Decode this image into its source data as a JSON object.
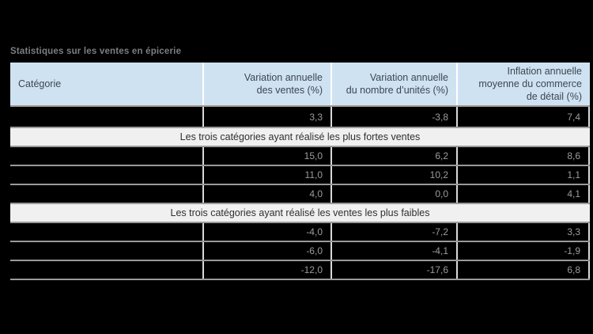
{
  "title": "Statistiques sur les ventes en épicerie",
  "colors": {
    "page_background": "#000000",
    "header_background": "#cfe2f2",
    "header_text": "#3d4651",
    "row_background": "#000000",
    "row_value_text": "#9c9c9c",
    "section_band_background": "#f0f0f0",
    "section_band_text": "#2f2f2f",
    "grid_line": "#9a9a9a",
    "column_separator": "#d9d9d9"
  },
  "table": {
    "column_headers": [
      {
        "label": "Catégorie"
      },
      {
        "label": "Variation annuelle\ndes ventes (%)"
      },
      {
        "label": "Variation annuelle\ndu nombre d’unités (%)"
      },
      {
        "label": "Inflation annuelle\nmoyenne du commerce\nde détail (%)"
      }
    ],
    "summary_row": {
      "category": "",
      "values": [
        "3,3",
        "-3,8",
        "7,4"
      ]
    },
    "sections": [
      {
        "label": "Les trois catégories ayant réalisé les plus fortes ventes",
        "rows": [
          {
            "category": "",
            "values": [
              "15,0",
              "6,2",
              "8,6"
            ]
          },
          {
            "category": "",
            "values": [
              "11,0",
              "10,2",
              "1,1"
            ]
          },
          {
            "category": "",
            "values": [
              "4,0",
              "0,0",
              "4,1"
            ]
          }
        ]
      },
      {
        "label": "Les trois catégories ayant réalisé les ventes les plus faibles",
        "rows": [
          {
            "category": "",
            "values": [
              "-4,0",
              "-7,2",
              "3,3"
            ]
          },
          {
            "category": "",
            "values": [
              "-6,0",
              "-4,1",
              "-1,9"
            ]
          },
          {
            "category": "",
            "values": [
              "-12,0",
              "-17,6",
              "6,8"
            ]
          }
        ]
      }
    ]
  },
  "chart_data": {
    "type": "table",
    "title": "Statistiques sur les ventes en épicerie",
    "columns": [
      "Catégorie",
      "Variation annuelle des ventes (%)",
      "Variation annuelle du nombre d’unités (%)",
      "Inflation annuelle moyenne du commerce de détail (%)"
    ],
    "rows": [
      {
        "categorie": "",
        "variation_ventes_pct": 3.3,
        "variation_unites_pct": -3.8,
        "inflation_pct": 7.4
      },
      {
        "section": "Les trois catégories ayant réalisé les plus fortes ventes"
      },
      {
        "categorie": "",
        "variation_ventes_pct": 15.0,
        "variation_unites_pct": 6.2,
        "inflation_pct": 8.6
      },
      {
        "categorie": "",
        "variation_ventes_pct": 11.0,
        "variation_unites_pct": 10.2,
        "inflation_pct": 1.1
      },
      {
        "categorie": "",
        "variation_ventes_pct": 4.0,
        "variation_unites_pct": 0.0,
        "inflation_pct": 4.1
      },
      {
        "section": "Les trois catégories ayant réalisé les ventes les plus faibles"
      },
      {
        "categorie": "",
        "variation_ventes_pct": -4.0,
        "variation_unites_pct": -7.2,
        "inflation_pct": 3.3
      },
      {
        "categorie": "",
        "variation_ventes_pct": -6.0,
        "variation_unites_pct": -4.1,
        "inflation_pct": -1.9
      },
      {
        "categorie": "",
        "variation_ventes_pct": -12.0,
        "variation_unites_pct": -17.6,
        "inflation_pct": 6.8
      }
    ]
  }
}
